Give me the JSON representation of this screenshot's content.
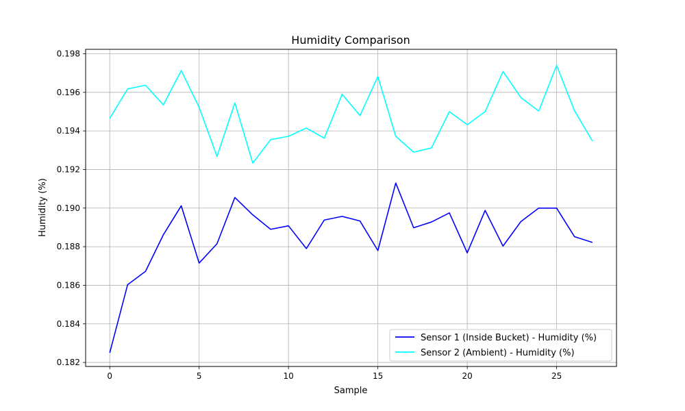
{
  "chart_data": {
    "type": "line",
    "title": "Humidity Comparison",
    "xlabel": "Sample",
    "ylabel": "Humidity (%)",
    "xlim": [
      -1.35,
      28.35
    ],
    "ylim": [
      0.18179,
      0.19823
    ],
    "xticks": [
      0,
      5,
      10,
      15,
      20,
      25
    ],
    "xtick_labels": [
      "0",
      "5",
      "10",
      "15",
      "20",
      "25"
    ],
    "yticks": [
      0.182,
      0.184,
      0.186,
      0.188,
      0.19,
      0.192,
      0.194,
      0.196,
      0.198
    ],
    "ytick_labels": [
      "0.182",
      "0.184",
      "0.186",
      "0.188",
      "0.190",
      "0.192",
      "0.194",
      "0.196",
      "0.198"
    ],
    "grid": true,
    "legend_position": "lower-right",
    "x": [
      0,
      1,
      2,
      3,
      4,
      5,
      6,
      7,
      8,
      9,
      10,
      11,
      12,
      13,
      14,
      15,
      16,
      17,
      18,
      19,
      20,
      21,
      22,
      23,
      24,
      25,
      26,
      27
    ],
    "series": [
      {
        "name": "Sensor 1 (Inside Bucket) - Humidity (%)",
        "color": "#0000ff",
        "values": [
          0.1825,
          0.18603,
          0.18672,
          0.18862,
          0.19012,
          0.18715,
          0.18815,
          0.19055,
          0.18965,
          0.1889,
          0.18908,
          0.1879,
          0.18938,
          0.18957,
          0.18933,
          0.1878,
          0.1913,
          0.18898,
          0.18928,
          0.18975,
          0.18768,
          0.18988,
          0.18803,
          0.1893,
          0.19,
          0.19,
          0.18852,
          0.18822
        ]
      },
      {
        "name": "Sensor 2 (Ambient) - Humidity (%)",
        "color": "#00ffff",
        "values": [
          0.19465,
          0.19618,
          0.19637,
          0.19535,
          0.19713,
          0.19522,
          0.19268,
          0.19545,
          0.19233,
          0.19355,
          0.19372,
          0.19415,
          0.19362,
          0.1959,
          0.1948,
          0.19682,
          0.19372,
          0.1929,
          0.19312,
          0.195,
          0.19432,
          0.195,
          0.19708,
          0.19573,
          0.19503,
          0.1974,
          0.19505,
          0.19348
        ]
      }
    ]
  }
}
